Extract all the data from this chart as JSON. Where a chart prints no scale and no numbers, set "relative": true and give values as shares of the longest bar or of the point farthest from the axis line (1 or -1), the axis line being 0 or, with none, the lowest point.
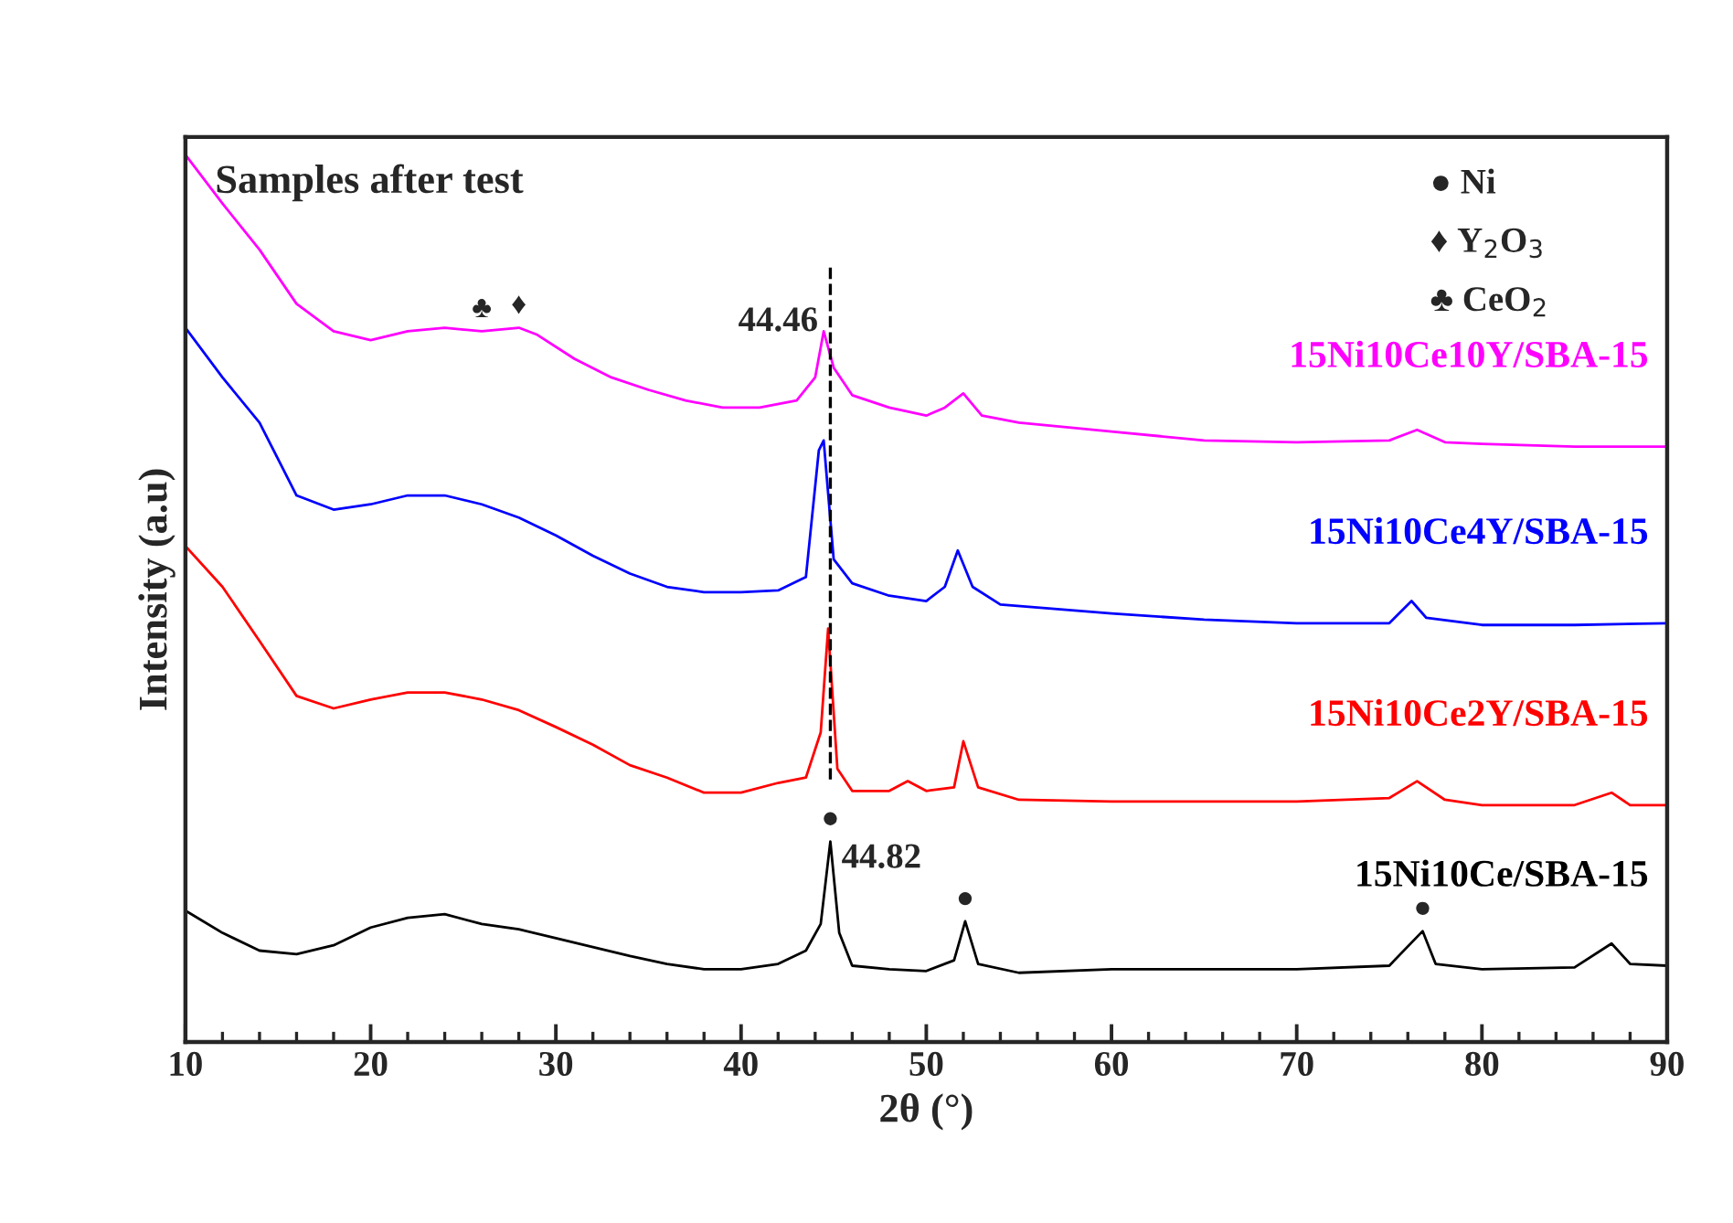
{
  "chart_data": {
    "type": "line",
    "title": "Samples after test",
    "xlabel": "2θ (°)",
    "ylabel": "Intensity (a.u)",
    "relative": true,
    "xlim": [
      10,
      90
    ],
    "xticks": [
      10,
      20,
      30,
      40,
      50,
      60,
      70,
      80,
      90
    ],
    "grid": false,
    "marker": "none",
    "line_style": "solid",
    "tick_labels": "x",
    "ref_lines": [
      {
        "axis": "x",
        "value": 44.82,
        "line_style": "dashed",
        "color": "#000000"
      }
    ],
    "annotations": [
      "● Ni",
      "♦ Y$_{2}$O$_{3}$",
      "♣ CeO$_{2}$",
      {
        "text": "44.46",
        "x": 44.46,
        "y": 0.801
      },
      {
        "text": "44.82",
        "x": 44.82,
        "y": 0.226
      },
      {
        "text": "♣",
        "x": 26,
        "y": 0.801
      },
      {
        "text": "♦",
        "x": 28,
        "y": 0.805
      },
      {
        "text": "●",
        "x": 44.82,
        "y": 0.226
      },
      {
        "text": "●",
        "x": 52.1,
        "y": 0.136
      },
      {
        "text": "●",
        "x": 76.8,
        "y": 0.125
      }
    ],
    "series": [
      {
        "name": "15Ni10Ce10Y/SBA-15",
        "color": "#ff00ff",
        "x": [
          10,
          12,
          14,
          16,
          18,
          20,
          22,
          24,
          26,
          28,
          29,
          31,
          33,
          35,
          37,
          39,
          41,
          43,
          44,
          44.46,
          45,
          46,
          48,
          50,
          51,
          52,
          53,
          55,
          60,
          65,
          70,
          75,
          76.5,
          78,
          80,
          85,
          90
        ],
        "values": [
          1.0,
          0.945,
          0.893,
          0.832,
          0.801,
          0.791,
          0.801,
          0.805,
          0.801,
          0.805,
          0.797,
          0.77,
          0.749,
          0.735,
          0.723,
          0.715,
          0.715,
          0.723,
          0.749,
          0.801,
          0.76,
          0.729,
          0.715,
          0.706,
          0.715,
          0.731,
          0.706,
          0.698,
          0.688,
          0.678,
          0.676,
          0.678,
          0.69,
          0.676,
          0.674,
          0.671,
          0.671
        ]
      },
      {
        "name": "15Ni10Ce4Y/SBA-15",
        "color": "#0000ff",
        "x": [
          10,
          12,
          14,
          16,
          18,
          20,
          22,
          24,
          26,
          28,
          30,
          32,
          34,
          36,
          38,
          40,
          42,
          43.5,
          44.2,
          44.46,
          45,
          46,
          48,
          50,
          51,
          51.7,
          52.5,
          54,
          60,
          65,
          70,
          75,
          76.2,
          77,
          80,
          85,
          90
        ],
        "values": [
          0.805,
          0.749,
          0.698,
          0.616,
          0.6,
          0.606,
          0.616,
          0.616,
          0.606,
          0.591,
          0.571,
          0.548,
          0.528,
          0.513,
          0.507,
          0.507,
          0.509,
          0.524,
          0.667,
          0.678,
          0.544,
          0.517,
          0.503,
          0.497,
          0.513,
          0.554,
          0.513,
          0.493,
          0.483,
          0.476,
          0.472,
          0.472,
          0.497,
          0.478,
          0.47,
          0.47,
          0.472
        ]
      },
      {
        "name": "15Ni10Ce2Y/SBA-15",
        "color": "#ff0000",
        "x": [
          10,
          12,
          14,
          16,
          18,
          20,
          22,
          24,
          26,
          28,
          30,
          32,
          34,
          36,
          38,
          40,
          42,
          43.5,
          44.3,
          44.7,
          45.2,
          46,
          48,
          49,
          50,
          51.5,
          52,
          52.8,
          55,
          60,
          65,
          70,
          75,
          76.5,
          78,
          80,
          85,
          87,
          88,
          90
        ],
        "values": [
          0.559,
          0.513,
          0.452,
          0.39,
          0.376,
          0.386,
          0.394,
          0.394,
          0.386,
          0.374,
          0.355,
          0.335,
          0.312,
          0.298,
          0.281,
          0.281,
          0.292,
          0.298,
          0.349,
          0.466,
          0.308,
          0.283,
          0.283,
          0.294,
          0.283,
          0.287,
          0.339,
          0.287,
          0.273,
          0.271,
          0.271,
          0.271,
          0.275,
          0.294,
          0.273,
          0.267,
          0.267,
          0.281,
          0.267,
          0.267
        ]
      },
      {
        "name": "15Ni10Ce/SBA-15",
        "color": "#000000",
        "x": [
          10,
          12,
          14,
          16,
          18,
          20,
          22,
          24,
          26,
          28,
          30,
          32,
          34,
          36,
          38,
          40,
          42,
          43.5,
          44.3,
          44.82,
          45.3,
          46,
          48,
          50,
          51.5,
          52.1,
          52.8,
          55,
          60,
          65,
          70,
          75,
          76.8,
          77.5,
          80,
          85,
          87,
          88,
          90
        ],
        "values": [
          0.148,
          0.123,
          0.103,
          0.099,
          0.109,
          0.129,
          0.14,
          0.144,
          0.133,
          0.127,
          0.117,
          0.107,
          0.097,
          0.088,
          0.082,
          0.082,
          0.088,
          0.103,
          0.133,
          0.226,
          0.123,
          0.086,
          0.082,
          0.08,
          0.092,
          0.136,
          0.088,
          0.078,
          0.082,
          0.082,
          0.082,
          0.086,
          0.125,
          0.088,
          0.082,
          0.084,
          0.111,
          0.088,
          0.086
        ]
      }
    ]
  }
}
